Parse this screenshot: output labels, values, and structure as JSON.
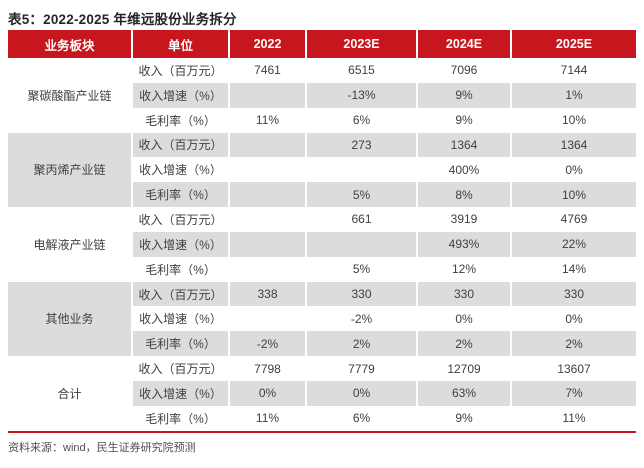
{
  "title": "表5：2022-2025 年维远股份业务拆分",
  "source_note": "资料来源：wind，民生证券研究院预测",
  "colors": {
    "accent_red": "#C8161E",
    "stripe_gray": "#DCDCDC",
    "body_text": "#3F3F3F",
    "title_text": "#262626",
    "source_text": "#4F4F4F"
  },
  "table": {
    "columns": [
      "业务板块",
      "单位",
      "2022",
      "2023E",
      "2024E",
      "2025E"
    ],
    "sections": [
      {
        "name": "聚碳酸酯产业链",
        "rows": [
          {
            "label": "收入（百万元）",
            "values": [
              "7461",
              "6515",
              "7096",
              "7144"
            ]
          },
          {
            "label": "收入增速（%）",
            "values": [
              "",
              "-13%",
              "9%",
              "1%"
            ]
          },
          {
            "label": "毛利率（%）",
            "values": [
              "11%",
              "6%",
              "9%",
              "10%"
            ]
          }
        ]
      },
      {
        "name": "聚丙烯产业链",
        "rows": [
          {
            "label": "收入（百万元）",
            "values": [
              "",
              "273",
              "1364",
              "1364"
            ]
          },
          {
            "label": "收入增速（%）",
            "values": [
              "",
              "",
              "400%",
              "0%"
            ]
          },
          {
            "label": "毛利率（%）",
            "values": [
              "",
              "5%",
              "8%",
              "10%"
            ]
          }
        ]
      },
      {
        "name": "电解液产业链",
        "rows": [
          {
            "label": "收入（百万元）",
            "values": [
              "",
              "661",
              "3919",
              "4769"
            ]
          },
          {
            "label": "收入增速（%）",
            "values": [
              "",
              "",
              "493%",
              "22%"
            ]
          },
          {
            "label": "毛利率（%）",
            "values": [
              "",
              "5%",
              "12%",
              "14%"
            ]
          }
        ]
      },
      {
        "name": "其他业务",
        "rows": [
          {
            "label": "收入（百万元）",
            "values": [
              "338",
              "330",
              "330",
              "330"
            ]
          },
          {
            "label": "收入增速（%）",
            "values": [
              "",
              "-2%",
              "0%",
              "0%"
            ]
          },
          {
            "label": "毛利率（%）",
            "values": [
              "-2%",
              "2%",
              "2%",
              "2%"
            ]
          }
        ]
      },
      {
        "name": "合计",
        "rows": [
          {
            "label": "收入（百万元）",
            "values": [
              "7798",
              "7779",
              "12709",
              "13607"
            ]
          },
          {
            "label": "收入增速（%）",
            "values": [
              "0%",
              "0%",
              "63%",
              "7%"
            ]
          },
          {
            "label": "毛利率（%）",
            "values": [
              "11%",
              "6%",
              "9%",
              "11%"
            ]
          }
        ]
      }
    ]
  }
}
